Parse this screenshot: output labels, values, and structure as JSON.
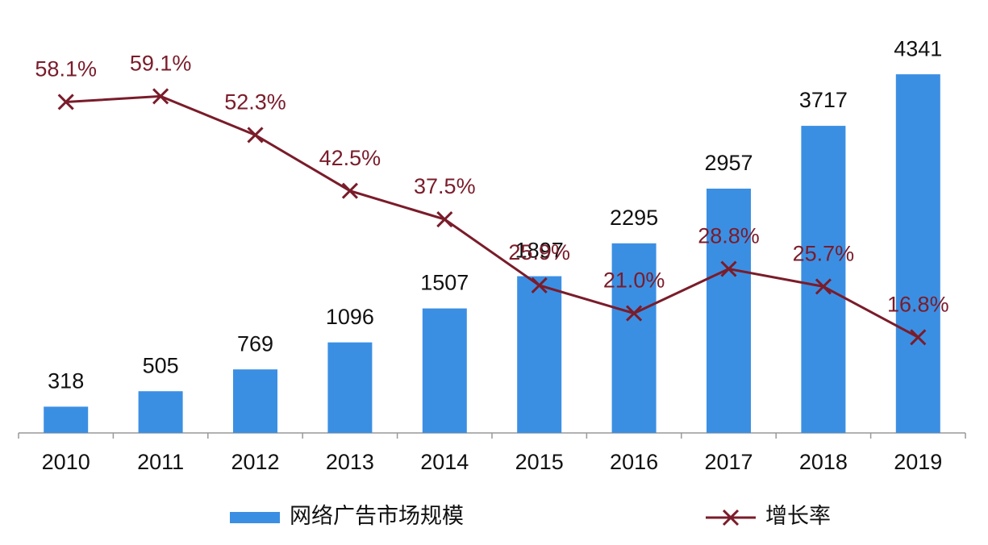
{
  "chart_data": {
    "type": "bar-line",
    "categories": [
      "2010",
      "2011",
      "2012",
      "2013",
      "2014",
      "2015",
      "2016",
      "2017",
      "2018",
      "2019"
    ],
    "series": [
      {
        "name": "网络广告市场规模",
        "type": "bar",
        "color": "#3b8fe3",
        "values": [
          318,
          505,
          769,
          1096,
          1507,
          1897,
          2295,
          2957,
          3717,
          4341
        ]
      },
      {
        "name": "增长率",
        "type": "line",
        "axis": "y2",
        "color": "#7a1c2a",
        "values": [
          58.1,
          59.1,
          52.3,
          42.5,
          37.5,
          25.9,
          21.0,
          28.8,
          25.7,
          16.8
        ],
        "value_labels": [
          "58.1%",
          "59.1%",
          "52.3%",
          "42.5%",
          "37.5%",
          "25.9%",
          "21.0%",
          "28.8%",
          "25.7%",
          "16.8%"
        ]
      }
    ],
    "ylim": [
      0,
      5240
    ],
    "y2lim": [
      0,
      76
    ],
    "legend": "bottom"
  }
}
